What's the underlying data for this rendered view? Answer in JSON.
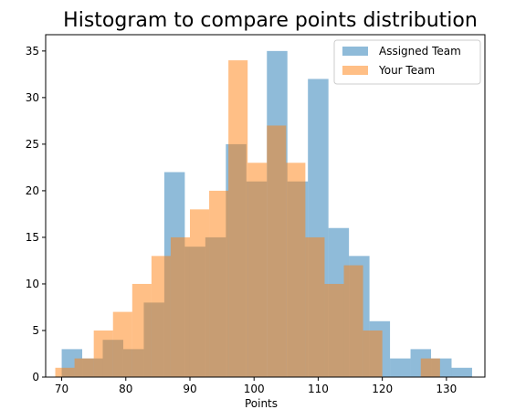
{
  "chart_data": {
    "type": "bar",
    "title": "Histogram to compare points distribution",
    "xlabel": "Points",
    "ylabel": "",
    "xlim": [
      67.5,
      136.0
    ],
    "ylim": [
      0,
      36.75
    ],
    "xticks": [
      70,
      80,
      90,
      100,
      110,
      120,
      130
    ],
    "yticks": [
      0,
      5,
      10,
      15,
      20,
      25,
      30,
      35
    ],
    "legend_position": "top-right",
    "series": [
      {
        "name": "Assigned Team",
        "color": "#1f77b4",
        "alpha": 0.5,
        "bin_width": 3.2,
        "bin_starts": [
          70,
          73.2,
          76.4,
          79.6,
          82.8,
          86.0,
          89.2,
          92.4,
          95.6,
          98.8,
          102.0,
          105.2,
          108.4,
          111.6,
          114.8,
          118.0,
          121.2,
          124.4,
          127.6,
          130.8
        ],
        "values": [
          3,
          2,
          4,
          3,
          8,
          22,
          14,
          15,
          25,
          21,
          35,
          21,
          32,
          16,
          13,
          6,
          2,
          3,
          2,
          1
        ]
      },
      {
        "name": "Your Team",
        "color": "#ff7f0e",
        "alpha": 0.5,
        "bin_width": 3.0,
        "bin_starts": [
          69.0,
          72.0,
          75.0,
          78.0,
          81.0,
          84.0,
          87.0,
          90.0,
          93.0,
          96.0,
          99.0,
          102.0,
          105.0,
          108.0,
          111.0,
          114.0,
          117.0,
          120.0,
          123.0,
          126.0
        ],
        "values": [
          1,
          2,
          5,
          7,
          10,
          13,
          15,
          18,
          20,
          34,
          23,
          27,
          23,
          15,
          10,
          12,
          5,
          0,
          0,
          2
        ]
      }
    ]
  }
}
